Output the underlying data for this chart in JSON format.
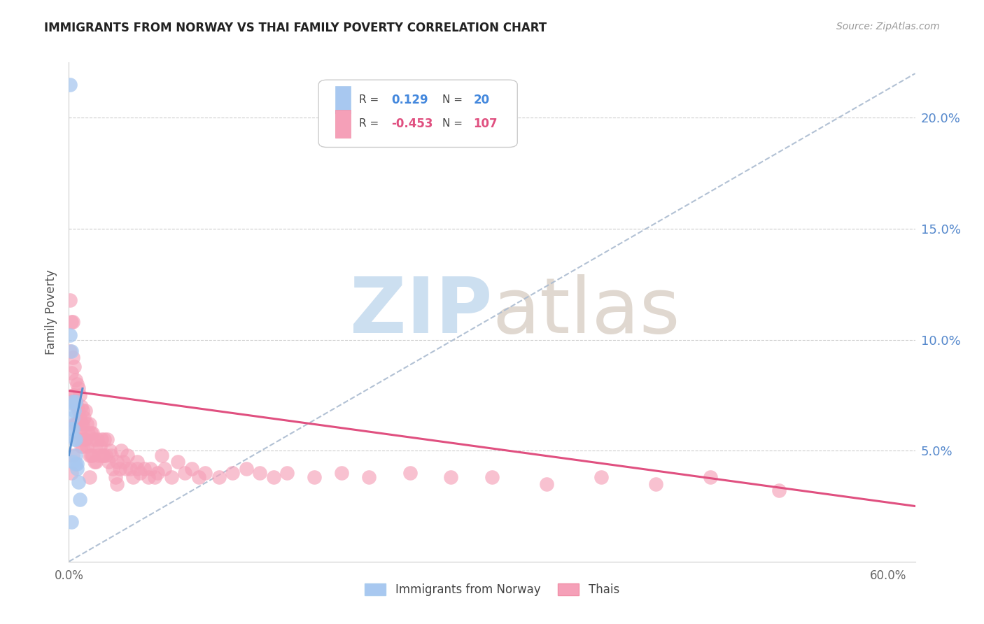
{
  "title": "IMMIGRANTS FROM NORWAY VS THAI FAMILY POVERTY CORRELATION CHART",
  "source": "Source: ZipAtlas.com",
  "ylabel": "Family Poverty",
  "ytick_vals": [
    0.05,
    0.1,
    0.15,
    0.2
  ],
  "ytick_labels": [
    "5.0%",
    "10.0%",
    "15.0%",
    "20.0%"
  ],
  "xtick_vals": [
    0.0,
    0.6
  ],
  "xtick_labels": [
    "0.0%",
    "60.0%"
  ],
  "legend_label_blue": "Immigrants from Norway",
  "legend_label_pink": "Thais",
  "blue_color": "#a8c8f0",
  "pink_color": "#f5a0b8",
  "trendline_blue_color": "#5590d0",
  "trendline_pink_color": "#e05080",
  "trendline_dashed_color": "#aabbd0",
  "ytick_color": "#5588cc",
  "xlim": [
    0.0,
    0.62
  ],
  "ylim": [
    0.0,
    0.225
  ],
  "norway_x": [
    0.001,
    0.001,
    0.002,
    0.002,
    0.003,
    0.003,
    0.003,
    0.003,
    0.004,
    0.004,
    0.004,
    0.005,
    0.005,
    0.005,
    0.005,
    0.006,
    0.006,
    0.007,
    0.008,
    0.002
  ],
  "norway_y": [
    0.215,
    0.102,
    0.095,
    0.06,
    0.072,
    0.065,
    0.06,
    0.045,
    0.071,
    0.068,
    0.055,
    0.072,
    0.055,
    0.048,
    0.044,
    0.044,
    0.042,
    0.036,
    0.028,
    0.018
  ],
  "norway_blue_trend_x": [
    0.0,
    0.01
  ],
  "norway_blue_trend_y": [
    0.048,
    0.078
  ],
  "thai_pink_trend_x": [
    0.0,
    0.62
  ],
  "thai_pink_trend_y": [
    0.077,
    0.025
  ],
  "dashed_trend_x": [
    0.0,
    0.62
  ],
  "dashed_trend_y": [
    0.0,
    0.22
  ],
  "thai_x": [
    0.001,
    0.001,
    0.002,
    0.002,
    0.002,
    0.003,
    0.003,
    0.003,
    0.004,
    0.004,
    0.004,
    0.005,
    0.005,
    0.005,
    0.006,
    0.006,
    0.006,
    0.007,
    0.007,
    0.007,
    0.008,
    0.008,
    0.008,
    0.009,
    0.009,
    0.009,
    0.01,
    0.01,
    0.01,
    0.011,
    0.011,
    0.012,
    0.012,
    0.013,
    0.013,
    0.014,
    0.015,
    0.015,
    0.016,
    0.016,
    0.017,
    0.017,
    0.018,
    0.019,
    0.02,
    0.02,
    0.021,
    0.022,
    0.023,
    0.024,
    0.025,
    0.026,
    0.027,
    0.028,
    0.029,
    0.03,
    0.031,
    0.032,
    0.034,
    0.035,
    0.037,
    0.038,
    0.04,
    0.042,
    0.043,
    0.045,
    0.047,
    0.05,
    0.052,
    0.055,
    0.058,
    0.06,
    0.063,
    0.065,
    0.068,
    0.07,
    0.075,
    0.08,
    0.085,
    0.09,
    0.095,
    0.1,
    0.11,
    0.12,
    0.13,
    0.14,
    0.15,
    0.16,
    0.18,
    0.2,
    0.22,
    0.25,
    0.28,
    0.31,
    0.35,
    0.39,
    0.43,
    0.47,
    0.52,
    0.002,
    0.003,
    0.008,
    0.015,
    0.025,
    0.035,
    0.05
  ],
  "thai_y": [
    0.118,
    0.095,
    0.108,
    0.085,
    0.072,
    0.108,
    0.092,
    0.075,
    0.088,
    0.075,
    0.062,
    0.082,
    0.072,
    0.062,
    0.08,
    0.07,
    0.062,
    0.078,
    0.068,
    0.058,
    0.075,
    0.065,
    0.055,
    0.07,
    0.062,
    0.052,
    0.068,
    0.062,
    0.052,
    0.065,
    0.055,
    0.068,
    0.055,
    0.062,
    0.052,
    0.058,
    0.062,
    0.048,
    0.058,
    0.048,
    0.058,
    0.048,
    0.055,
    0.045,
    0.052,
    0.045,
    0.055,
    0.048,
    0.052,
    0.055,
    0.048,
    0.055,
    0.048,
    0.055,
    0.045,
    0.05,
    0.048,
    0.042,
    0.038,
    0.045,
    0.042,
    0.05,
    0.045,
    0.042,
    0.048,
    0.042,
    0.038,
    0.045,
    0.04,
    0.042,
    0.038,
    0.042,
    0.038,
    0.04,
    0.048,
    0.042,
    0.038,
    0.045,
    0.04,
    0.042,
    0.038,
    0.04,
    0.038,
    0.04,
    0.042,
    0.04,
    0.038,
    0.04,
    0.038,
    0.04,
    0.038,
    0.04,
    0.038,
    0.038,
    0.035,
    0.038,
    0.035,
    0.038,
    0.032,
    0.04,
    0.048,
    0.058,
    0.038,
    0.048,
    0.035,
    0.042
  ]
}
